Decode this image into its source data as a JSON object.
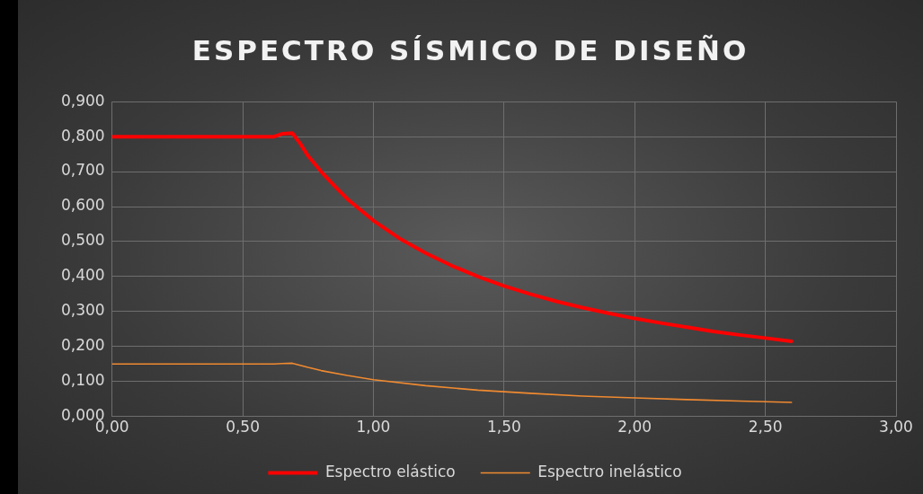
{
  "chart_data": {
    "type": "line",
    "title": "ESPECTRO SÍSMICO DE DISEÑO",
    "series": [
      {
        "name": "Espectro elástico",
        "color": "#ff0000",
        "x": [
          0,
          0.2,
          0.4,
          0.6,
          0.62,
          0.65,
          0.69,
          0.72,
          0.75,
          0.8,
          0.85,
          0.9,
          1.0,
          1.1,
          1.2,
          1.3,
          1.4,
          1.5,
          1.6,
          1.7,
          1.8,
          1.9,
          2.0,
          2.1,
          2.2,
          2.3,
          2.4,
          2.5,
          2.6
        ],
        "values": [
          0.8,
          0.8,
          0.8,
          0.8,
          0.8,
          0.808,
          0.81,
          0.78,
          0.745,
          0.7,
          0.66,
          0.622,
          0.56,
          0.509,
          0.467,
          0.431,
          0.4,
          0.373,
          0.35,
          0.329,
          0.311,
          0.295,
          0.28,
          0.267,
          0.255,
          0.243,
          0.233,
          0.224,
          0.215
        ]
      },
      {
        "name": "Espectro inelástico",
        "color": "#f08a30",
        "x": [
          0,
          0.2,
          0.4,
          0.6,
          0.62,
          0.65,
          0.69,
          0.72,
          0.75,
          0.8,
          0.9,
          1.0,
          1.2,
          1.4,
          1.6,
          1.8,
          2.0,
          2.2,
          2.4,
          2.6
        ],
        "values": [
          0.15,
          0.15,
          0.15,
          0.15,
          0.15,
          0.151,
          0.152,
          0.146,
          0.14,
          0.131,
          0.117,
          0.105,
          0.088,
          0.075,
          0.066,
          0.058,
          0.053,
          0.048,
          0.044,
          0.04
        ]
      }
    ],
    "xlim": [
      0,
      3
    ],
    "xticks": [
      {
        "value": 0,
        "label": "0,00"
      },
      {
        "value": 0.5,
        "label": "0,50"
      },
      {
        "value": 1,
        "label": "1,00"
      },
      {
        "value": 1.5,
        "label": "1,50"
      },
      {
        "value": 2,
        "label": "2,00"
      },
      {
        "value": 2.5,
        "label": "2,50"
      },
      {
        "value": 3,
        "label": "3,00"
      }
    ],
    "ylim": [
      0,
      0.9
    ],
    "yticks": [
      {
        "value": 0,
        "label": "0,000"
      },
      {
        "value": 0.1,
        "label": "0,100"
      },
      {
        "value": 0.2,
        "label": "0,200"
      },
      {
        "value": 0.3,
        "label": "0,300"
      },
      {
        "value": 0.4,
        "label": "0,400"
      },
      {
        "value": 0.5,
        "label": "0,500"
      },
      {
        "value": 0.6,
        "label": "0,600"
      },
      {
        "value": 0.7,
        "label": "0,700"
      },
      {
        "value": 0.8,
        "label": "0,800"
      },
      {
        "value": 0.9,
        "label": "0,900"
      }
    ],
    "grid": true,
    "legend": "bottom",
    "marker": "none",
    "line_style": "solid"
  }
}
